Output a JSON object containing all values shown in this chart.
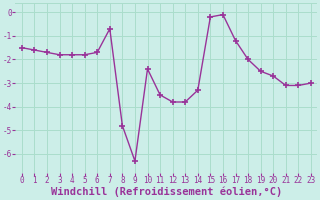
{
  "x": [
    0,
    1,
    2,
    3,
    4,
    5,
    6,
    7,
    8,
    9,
    10,
    11,
    12,
    13,
    14,
    15,
    16,
    17,
    18,
    19,
    20,
    21,
    22,
    23
  ],
  "y": [
    -1.5,
    -1.6,
    -1.7,
    -1.8,
    -1.8,
    -1.8,
    -1.7,
    -0.7,
    -4.8,
    -6.3,
    -2.4,
    -3.5,
    -3.8,
    -3.8,
    -3.3,
    -0.2,
    -0.1,
    -1.2,
    -2.0,
    -2.5,
    -2.7,
    -3.1,
    -3.1,
    -3.0
  ],
  "line_color": "#993399",
  "marker": "+",
  "marker_size": 4,
  "marker_lw": 1.2,
  "bg_color": "#cceee8",
  "grid_color": "#aaddcc",
  "xlabel": "Windchill (Refroidissement éolien,°C)",
  "xlabel_color": "#993399",
  "xlim": [
    -0.5,
    23.5
  ],
  "ylim": [
    -6.8,
    0.4
  ],
  "yticks": [
    0,
    -1,
    -2,
    -3,
    -4,
    -5,
    -6
  ],
  "xticks": [
    0,
    1,
    2,
    3,
    4,
    5,
    6,
    7,
    8,
    9,
    10,
    11,
    12,
    13,
    14,
    15,
    16,
    17,
    18,
    19,
    20,
    21,
    22,
    23
  ],
  "tick_color": "#993399",
  "tick_fontsize": 5.5,
  "xlabel_fontsize": 7.5,
  "line_width": 1.0,
  "linestyle": "-"
}
